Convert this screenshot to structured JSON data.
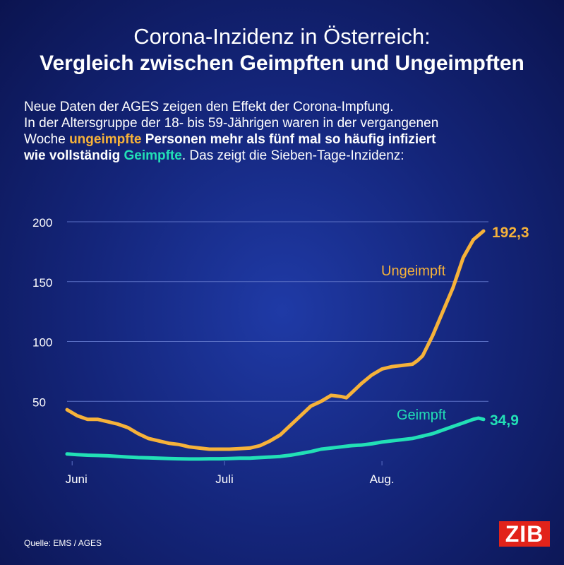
{
  "title_line1": "Corona-Inzidenz in Österreich:",
  "title_line2": "Vergleich zwischen Geimpften und Ungeimpften",
  "intro": {
    "line1": "Neue Daten der AGES zeigen den Effekt der Corona-Impfung.",
    "line2": "In der Altersgruppe der 18- bis 59-Jährigen waren in der vergangenen",
    "line3_pre": "Woche ",
    "line3_highlight": "ungeimpfte",
    "line3_post": " Personen mehr als fünf mal so häufig infiziert",
    "line4_pre": "wie vollständig ",
    "line4_highlight": "Geimpfte",
    "line4_post": ". Das zeigt die Sieben-Tage-Inzidenz:"
  },
  "source": "Quelle: EMS / AGES",
  "logo": "ZIB",
  "colors": {
    "ungeimpft": "#f6b23a",
    "geimpft": "#22e0b6",
    "grid": "#5a6fc4",
    "axis": "#ffffff"
  },
  "chart_data": {
    "type": "line",
    "title": "Sieben-Tage-Inzidenz",
    "xlabel": "",
    "ylabel": "",
    "xlim": [
      0,
      82
    ],
    "ylim": [
      0,
      200
    ],
    "yticks": [
      50,
      100,
      150,
      200
    ],
    "xticks": [
      {
        "x": 1,
        "label": "Juni"
      },
      {
        "x": 31,
        "label": "Juli"
      },
      {
        "x": 62,
        "label": "Aug."
      }
    ],
    "grid": true,
    "series": [
      {
        "name": "Ungeimpft",
        "label": "Ungeimpft",
        "end_label": "192,3",
        "x": [
          0,
          2,
          4,
          6,
          8,
          10,
          12,
          14,
          16,
          18,
          20,
          22,
          24,
          26,
          28,
          30,
          32,
          34,
          36,
          38,
          40,
          42,
          44,
          46,
          48,
          50,
          52,
          54,
          55,
          56,
          58,
          60,
          62,
          64,
          66,
          68,
          69,
          70,
          72,
          74,
          76,
          78,
          80,
          82
        ],
        "values": [
          43,
          38,
          35,
          35,
          33,
          31,
          28,
          23,
          19,
          17,
          15,
          14,
          12,
          11,
          10,
          10,
          10,
          10.5,
          11,
          13,
          17,
          22,
          30,
          38,
          46,
          50,
          55,
          54,
          53,
          57,
          65,
          72,
          77,
          79,
          80,
          81,
          84,
          88,
          105,
          125,
          145,
          170,
          185,
          192.3
        ]
      },
      {
        "name": "Geimpft",
        "label": "Geimpft",
        "end_label": "34,9",
        "x": [
          0,
          2,
          4,
          6,
          8,
          10,
          12,
          14,
          16,
          18,
          20,
          22,
          24,
          26,
          28,
          30,
          32,
          34,
          36,
          38,
          40,
          42,
          44,
          46,
          48,
          50,
          52,
          54,
          56,
          58,
          60,
          62,
          64,
          66,
          68,
          70,
          72,
          74,
          76,
          78,
          80,
          81,
          82
        ],
        "values": [
          6,
          5.5,
          5,
          4.8,
          4.5,
          4,
          3.5,
          3,
          2.8,
          2.5,
          2.2,
          2,
          1.8,
          1.8,
          2,
          2,
          2.2,
          2.5,
          2.5,
          3,
          3.5,
          4,
          5,
          6.5,
          8,
          10,
          11,
          12,
          13,
          13.5,
          14.5,
          16,
          17,
          18,
          19,
          21,
          23,
          26,
          29,
          32,
          35,
          36,
          34.9
        ]
      }
    ]
  }
}
